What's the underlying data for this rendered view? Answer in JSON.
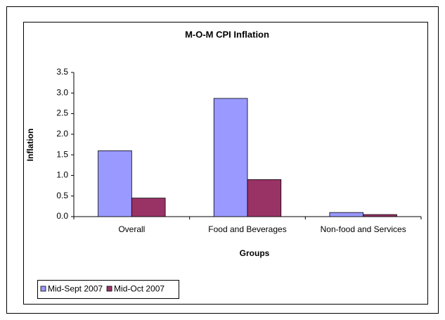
{
  "chart_data": {
    "type": "bar",
    "title": "M-O-M CPI Inflation",
    "x_label": "Groups",
    "y_label": "Inflation",
    "categories": [
      "Overall",
      "Food and Beverages",
      "Non-food and Services"
    ],
    "series": [
      {
        "name": "Mid-Sept 2007",
        "color": "#9999ff",
        "values": [
          1.6,
          2.87,
          0.1
        ]
      },
      {
        "name": "Mid-Oct 2007",
        "color": "#993366",
        "values": [
          0.45,
          0.9,
          0.05
        ]
      }
    ],
    "ylim": [
      0,
      3.5
    ],
    "yticks": [
      {
        "value": 0,
        "label": "0.0"
      },
      0.5,
      {
        "value": 1,
        "label": "1.0"
      },
      1.5,
      {
        "value": 2,
        "label": "2.0"
      },
      2.5,
      {
        "value": 3,
        "label": "3.0"
      },
      3.5
    ],
    "grid": false,
    "legend": "bottom-left"
  }
}
